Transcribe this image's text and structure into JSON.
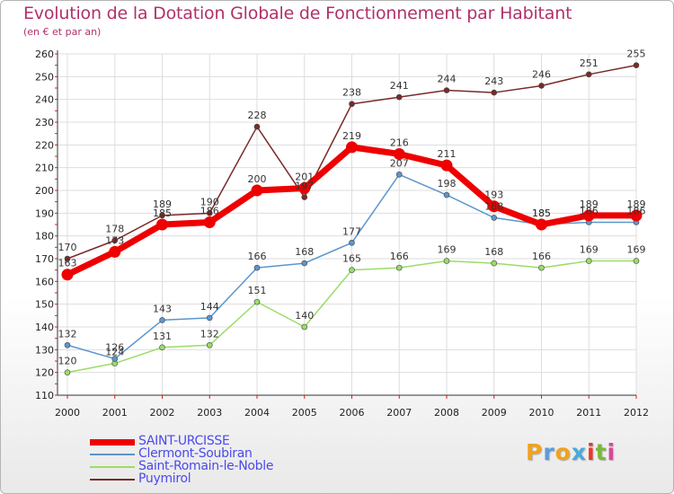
{
  "title": "Evolution de la Dotation Globale de Fonctionnement par Habitant",
  "subtitle": "(en € et par an)",
  "logo": {
    "text": "Proxiti",
    "letters": [
      "P",
      "r",
      "o",
      "x",
      "i",
      "t",
      "i"
    ],
    "colors": [
      "#f2a21c",
      "#5f9bd6",
      "#f2a21c",
      "#4aa9dd",
      "#e8392a",
      "#7ab83a",
      "#d64a96"
    ]
  },
  "colors": {
    "title": "#b0316a",
    "legend_text": "#4a4aee",
    "axis_red": "#dd2222"
  },
  "chart_data": {
    "type": "line",
    "title": "Evolution de la Dotation Globale de Fonctionnement par Habitant",
    "subtitle": "(en € et par an)",
    "xlabel": "",
    "ylabel": "",
    "x": [
      "2000",
      "2001",
      "2002",
      "2003",
      "2004",
      "2005",
      "2006",
      "2007",
      "2008",
      "2009",
      "2010",
      "2011",
      "2012"
    ],
    "ylim": [
      110,
      260
    ],
    "yticks": [
      "110",
      "120",
      "130",
      "140",
      "150",
      "160",
      "170",
      "180",
      "190",
      "200",
      "210",
      "220",
      "230",
      "240",
      "250",
      "260"
    ],
    "grid": true,
    "legend_position": "bottom-left",
    "series": [
      {
        "name": "SAINT-URCISSE",
        "color": "#ee0000",
        "width": "thick",
        "values": [
          163,
          173,
          185,
          186,
          200,
          201,
          219,
          216,
          211,
          193,
          185,
          189,
          189
        ],
        "labels": [
          "163",
          "173",
          "185",
          "186",
          "200",
          "201",
          "219",
          "216",
          "211",
          "193",
          "185",
          "189",
          "189"
        ]
      },
      {
        "name": "Clermont-Soubiran",
        "color": "#5b96cb",
        "width": "thin",
        "values": [
          132,
          126,
          143,
          144,
          166,
          168,
          177,
          207,
          198,
          188,
          185,
          186,
          186
        ],
        "labels": [
          "132",
          "126",
          "143",
          "144",
          "166",
          "168",
          "177",
          "207",
          "198",
          "188",
          "185",
          "186",
          "186"
        ]
      },
      {
        "name": "Saint-Romain-le-Noble",
        "color": "#99dd66",
        "width": "thin",
        "values": [
          120,
          124,
          131,
          132,
          151,
          140,
          165,
          166,
          169,
          168,
          166,
          169,
          169
        ],
        "labels": [
          "120",
          "124",
          "131",
          "132",
          "151",
          "140",
          "165",
          "166",
          "169",
          "168",
          "166",
          "169",
          "169"
        ]
      },
      {
        "name": "Puymirol",
        "color": "#7a2a2a",
        "width": "thin",
        "values": [
          170,
          178,
          189,
          190,
          228,
          197,
          238,
          241,
          244,
          243,
          246,
          251,
          255
        ],
        "labels": [
          "170",
          "178",
          "189",
          "190",
          "228",
          "197",
          "238",
          "241",
          "244",
          "243",
          "246",
          "251",
          "255"
        ]
      }
    ]
  }
}
